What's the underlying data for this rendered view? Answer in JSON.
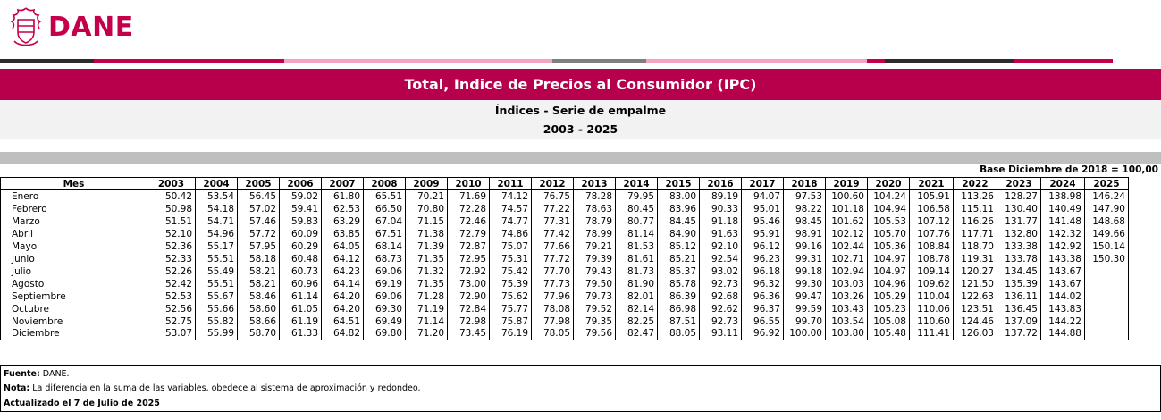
{
  "brand": {
    "name": "DANE",
    "color": "#c4004b",
    "logo_icon": "colombia-shield-icon"
  },
  "stripe_colors": [
    "#2b2b2b",
    "#c4004b",
    "#f3a3c2",
    "#7f7f7f",
    "#f3a3c2",
    "#c4004b",
    "#2b2b2b",
    "#c4004b"
  ],
  "title": "Total, Indice de Precios al Consumidor (IPC)",
  "subtitle": "Índices - Serie de empalme",
  "period": "2003 - 2025",
  "base_note": "Base Diciembre de 2018 = 100,00",
  "table": {
    "header_label": "Mes",
    "years": [
      "2003",
      "2004",
      "2005",
      "2006",
      "2007",
      "2008",
      "2009",
      "2010",
      "2011",
      "2012",
      "2013",
      "2014",
      "2015",
      "2016",
      "2017",
      "2018",
      "2019",
      "2020",
      "2021",
      "2022",
      "2023",
      "2024",
      "2025"
    ],
    "rows": [
      {
        "month": "Enero",
        "values": [
          "50.42",
          "53.54",
          "56.45",
          "59.02",
          "61.80",
          "65.51",
          "70.21",
          "71.69",
          "74.12",
          "76.75",
          "78.28",
          "79.95",
          "83.00",
          "89.19",
          "94.07",
          "97.53",
          "100.60",
          "104.24",
          "105.91",
          "113.26",
          "128.27",
          "138.98",
          "146.24"
        ]
      },
      {
        "month": "Febrero",
        "values": [
          "50.98",
          "54.18",
          "57.02",
          "59.41",
          "62.53",
          "66.50",
          "70.80",
          "72.28",
          "74.57",
          "77.22",
          "78.63",
          "80.45",
          "83.96",
          "90.33",
          "95.01",
          "98.22",
          "101.18",
          "104.94",
          "106.58",
          "115.11",
          "130.40",
          "140.49",
          "147.90"
        ]
      },
      {
        "month": "Marzo",
        "values": [
          "51.51",
          "54.71",
          "57.46",
          "59.83",
          "63.29",
          "67.04",
          "71.15",
          "72.46",
          "74.77",
          "77.31",
          "78.79",
          "80.77",
          "84.45",
          "91.18",
          "95.46",
          "98.45",
          "101.62",
          "105.53",
          "107.12",
          "116.26",
          "131.77",
          "141.48",
          "148.68"
        ]
      },
      {
        "month": "Abril",
        "values": [
          "52.10",
          "54.96",
          "57.72",
          "60.09",
          "63.85",
          "67.51",
          "71.38",
          "72.79",
          "74.86",
          "77.42",
          "78.99",
          "81.14",
          "84.90",
          "91.63",
          "95.91",
          "98.91",
          "102.12",
          "105.70",
          "107.76",
          "117.71",
          "132.80",
          "142.32",
          "149.66"
        ]
      },
      {
        "month": "Mayo",
        "values": [
          "52.36",
          "55.17",
          "57.95",
          "60.29",
          "64.05",
          "68.14",
          "71.39",
          "72.87",
          "75.07",
          "77.66",
          "79.21",
          "81.53",
          "85.12",
          "92.10",
          "96.12",
          "99.16",
          "102.44",
          "105.36",
          "108.84",
          "118.70",
          "133.38",
          "142.92",
          "150.14"
        ]
      },
      {
        "month": "Junio",
        "values": [
          "52.33",
          "55.51",
          "58.18",
          "60.48",
          "64.12",
          "68.73",
          "71.35",
          "72.95",
          "75.31",
          "77.72",
          "79.39",
          "81.61",
          "85.21",
          "92.54",
          "96.23",
          "99.31",
          "102.71",
          "104.97",
          "108.78",
          "119.31",
          "133.78",
          "143.38",
          "150.30"
        ]
      },
      {
        "month": "Julio",
        "values": [
          "52.26",
          "55.49",
          "58.21",
          "60.73",
          "64.23",
          "69.06",
          "71.32",
          "72.92",
          "75.42",
          "77.70",
          "79.43",
          "81.73",
          "85.37",
          "93.02",
          "96.18",
          "99.18",
          "102.94",
          "104.97",
          "109.14",
          "120.27",
          "134.45",
          "143.67",
          ""
        ]
      },
      {
        "month": "Agosto",
        "values": [
          "52.42",
          "55.51",
          "58.21",
          "60.96",
          "64.14",
          "69.19",
          "71.35",
          "73.00",
          "75.39",
          "77.73",
          "79.50",
          "81.90",
          "85.78",
          "92.73",
          "96.32",
          "99.30",
          "103.03",
          "104.96",
          "109.62",
          "121.50",
          "135.39",
          "143.67",
          ""
        ]
      },
      {
        "month": "Septiembre",
        "values": [
          "52.53",
          "55.67",
          "58.46",
          "61.14",
          "64.20",
          "69.06",
          "71.28",
          "72.90",
          "75.62",
          "77.96",
          "79.73",
          "82.01",
          "86.39",
          "92.68",
          "96.36",
          "99.47",
          "103.26",
          "105.29",
          "110.04",
          "122.63",
          "136.11",
          "144.02",
          ""
        ]
      },
      {
        "month": "Octubre",
        "values": [
          "52.56",
          "55.66",
          "58.60",
          "61.05",
          "64.20",
          "69.30",
          "71.19",
          "72.84",
          "75.77",
          "78.08",
          "79.52",
          "82.14",
          "86.98",
          "92.62",
          "96.37",
          "99.59",
          "103.43",
          "105.23",
          "110.06",
          "123.51",
          "136.45",
          "143.83",
          ""
        ]
      },
      {
        "month": "Noviembre",
        "values": [
          "52.75",
          "55.82",
          "58.66",
          "61.19",
          "64.51",
          "69.49",
          "71.14",
          "72.98",
          "75.87",
          "77.98",
          "79.35",
          "82.25",
          "87.51",
          "92.73",
          "96.55",
          "99.70",
          "103.54",
          "105.08",
          "110.60",
          "124.46",
          "137.09",
          "144.22",
          ""
        ]
      },
      {
        "month": "Diciembre",
        "values": [
          "53.07",
          "55.99",
          "58.70",
          "61.33",
          "64.82",
          "69.80",
          "71.20",
          "73.45",
          "76.19",
          "78.05",
          "79.56",
          "82.47",
          "88.05",
          "93.11",
          "96.92",
          "100.00",
          "103.80",
          "105.48",
          "111.41",
          "126.03",
          "137.72",
          "144.88",
          ""
        ]
      }
    ]
  },
  "footer": {
    "source_label": "Fuente:",
    "source_value": " DANE.",
    "note_label": "Nota:",
    "note_value": " La diferencia en la suma de las variables, obedece al sistema de aproximación y redondeo.",
    "updated": "Actualizado el 7 de Julio de 2025"
  }
}
